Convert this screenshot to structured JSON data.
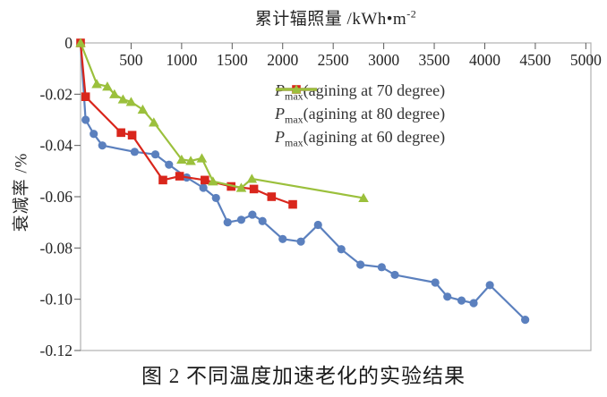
{
  "title": {
    "main": "累计辐照量 /kWh•m",
    "sup": "-2"
  },
  "y_axis_title": "衰减率 /%",
  "caption": "图 2  不同温度加速老化的实验结果",
  "colors": {
    "series_70": "#5b80be",
    "series_80": "#d9261c",
    "series_60": "#9bc03c",
    "axis_box": "#b0b0b0",
    "tick": "#595959",
    "tick_label": "#262626"
  },
  "chart_data": {
    "type": "line",
    "title": "累计辐照量 /kWh•m⁻²",
    "xlabel": "累计辐照量 /kWh•m⁻²",
    "ylabel": "衰减率 /%",
    "xlim": [
      0,
      5050
    ],
    "ylim": [
      -0.12,
      0
    ],
    "x_ticks": [
      500,
      1000,
      1500,
      2000,
      2500,
      3000,
      3500,
      4000,
      4500,
      5000
    ],
    "y_ticks": [
      0,
      -0.02,
      -0.04,
      -0.06,
      -0.08,
      -0.1,
      -0.12
    ],
    "y_tick_labels": [
      "0",
      "-0.02",
      "-0.04",
      "-0.06",
      "-0.08",
      "-0.10",
      "-0.12"
    ],
    "grid": false,
    "legend_position": "top-center-inside",
    "series": [
      {
        "id": "pmax-70",
        "label_prefix": "P",
        "label_sub": "max",
        "label_rest": "(agining at 70 degree)",
        "color": "#5b80be",
        "marker": "circle",
        "points": [
          [
            0,
            0
          ],
          [
            50,
            -0.03
          ],
          [
            130,
            -0.0355
          ],
          [
            215,
            -0.04
          ],
          [
            535,
            -0.0425
          ],
          [
            740,
            -0.0435
          ],
          [
            875,
            -0.0475
          ],
          [
            1050,
            -0.0525
          ],
          [
            1215,
            -0.0565
          ],
          [
            1340,
            -0.0605
          ],
          [
            1455,
            -0.07
          ],
          [
            1590,
            -0.069
          ],
          [
            1700,
            -0.067
          ],
          [
            1800,
            -0.0695
          ],
          [
            2000,
            -0.0765
          ],
          [
            2180,
            -0.0775
          ],
          [
            2350,
            -0.071
          ],
          [
            2580,
            -0.0805
          ],
          [
            2770,
            -0.0865
          ],
          [
            2980,
            -0.0875
          ],
          [
            3110,
            -0.0905
          ],
          [
            3510,
            -0.0935
          ],
          [
            3630,
            -0.099
          ],
          [
            3770,
            -0.1005
          ],
          [
            3890,
            -0.1015
          ],
          [
            4050,
            -0.0945
          ],
          [
            4400,
            -0.108
          ]
        ]
      },
      {
        "id": "pmax-80",
        "label_prefix": "P",
        "label_sub": "max",
        "label_rest": "(agining at 80 degree)",
        "color": "#d9261c",
        "marker": "square",
        "points": [
          [
            0,
            0
          ],
          [
            50,
            -0.021
          ],
          [
            400,
            -0.035
          ],
          [
            510,
            -0.036
          ],
          [
            815,
            -0.0535
          ],
          [
            980,
            -0.052
          ],
          [
            1230,
            -0.0535
          ],
          [
            1490,
            -0.056
          ],
          [
            1715,
            -0.057
          ],
          [
            1890,
            -0.06
          ],
          [
            2100,
            -0.063
          ]
        ]
      },
      {
        "id": "pmax-60",
        "label_prefix": "P",
        "label_sub": "max",
        "label_rest": "(agining at 60 degree)",
        "color": "#9bc03c",
        "marker": "triangle",
        "points": [
          [
            0,
            0
          ],
          [
            160,
            -0.016
          ],
          [
            265,
            -0.017
          ],
          [
            335,
            -0.02
          ],
          [
            420,
            -0.022
          ],
          [
            500,
            -0.023
          ],
          [
            615,
            -0.026
          ],
          [
            725,
            -0.031
          ],
          [
            1000,
            -0.0455
          ],
          [
            1090,
            -0.046
          ],
          [
            1200,
            -0.045
          ],
          [
            1310,
            -0.054
          ],
          [
            1590,
            -0.0565
          ],
          [
            1695,
            -0.053
          ],
          [
            2800,
            -0.0605
          ]
        ]
      }
    ]
  }
}
